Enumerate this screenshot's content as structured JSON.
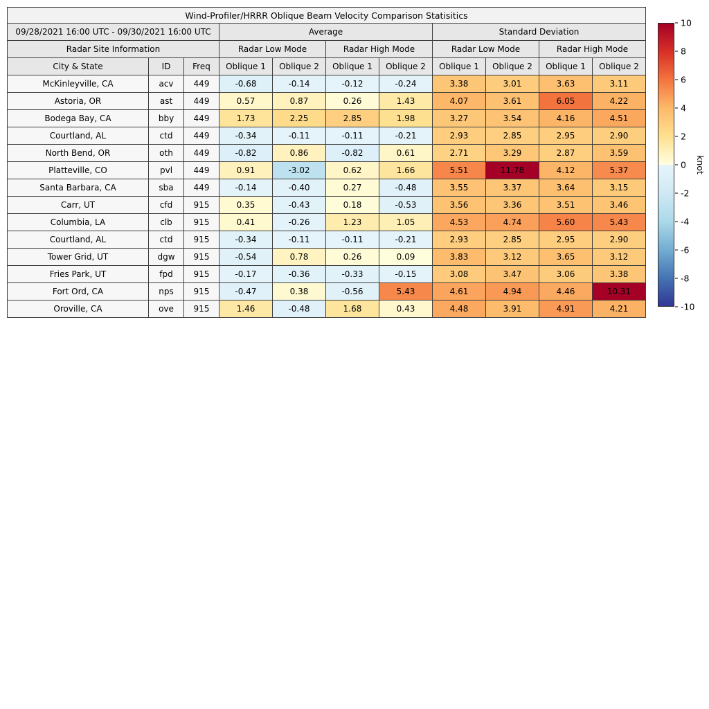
{
  "chart_data": {
    "type": "heatmap",
    "title": "Wind-Profiler/HRRR Oblique Beam Velocity Comparison Statisitics",
    "period_label": "09/28/2021 16:00 UTC - 09/30/2021 16:00 UTC",
    "site_info_label": "Radar Site Information",
    "site_columns": [
      "City & State",
      "ID",
      "Freq"
    ],
    "header_groups": [
      {
        "label": "Average",
        "modes": [
          "Radar Low Mode",
          "Radar High Mode"
        ]
      },
      {
        "label": "Standard Deviation",
        "modes": [
          "Radar Low Mode",
          "Radar High Mode"
        ]
      }
    ],
    "oblique_labels": [
      "Oblique 1",
      "Oblique 2"
    ],
    "colorbar": {
      "label": "knot",
      "min": -10,
      "max": 10,
      "ticks": [
        10,
        8,
        6,
        4,
        2,
        0,
        -2,
        -4,
        -6,
        -8,
        -10
      ]
    },
    "colormap": {
      "negative": [
        [
          -10,
          "#313695"
        ],
        [
          -8,
          "#4575b4"
        ],
        [
          -6,
          "#74add1"
        ],
        [
          -4,
          "#abd9e9"
        ],
        [
          -2,
          "#cfe9f4"
        ],
        [
          0,
          "#e6f4fa"
        ]
      ],
      "positive": [
        [
          0,
          "#ffffe0"
        ],
        [
          2,
          "#fee090"
        ],
        [
          4,
          "#fdb96a"
        ],
        [
          6,
          "#f4753f"
        ],
        [
          8,
          "#d73027"
        ],
        [
          10,
          "#a50026"
        ]
      ]
    },
    "rows": [
      {
        "city": "McKinleyville, CA",
        "id": "acv",
        "freq": "449",
        "values": [
          -0.68,
          -0.14,
          -0.12,
          -0.24,
          3.38,
          3.01,
          3.63,
          3.11
        ]
      },
      {
        "city": "Astoria, OR",
        "id": "ast",
        "freq": "449",
        "values": [
          0.57,
          0.87,
          0.26,
          1.43,
          4.07,
          3.61,
          6.05,
          4.22
        ]
      },
      {
        "city": "Bodega Bay, CA",
        "id": "bby",
        "freq": "449",
        "values": [
          1.73,
          2.25,
          2.85,
          1.98,
          3.27,
          3.54,
          4.16,
          4.51
        ]
      },
      {
        "city": "Courtland, AL",
        "id": "ctd",
        "freq": "449",
        "values": [
          -0.34,
          -0.11,
          -0.11,
          -0.21,
          2.93,
          2.85,
          2.95,
          2.9
        ]
      },
      {
        "city": "North Bend, OR",
        "id": "oth",
        "freq": "449",
        "values": [
          -0.82,
          0.86,
          -0.82,
          0.61,
          2.71,
          3.29,
          2.87,
          3.59
        ]
      },
      {
        "city": "Platteville, CO",
        "id": "pvl",
        "freq": "449",
        "values": [
          0.91,
          -3.02,
          0.62,
          1.66,
          5.51,
          11.78,
          4.12,
          5.37
        ]
      },
      {
        "city": "Santa Barbara, CA",
        "id": "sba",
        "freq": "449",
        "values": [
          -0.14,
          -0.4,
          0.27,
          -0.48,
          3.55,
          3.37,
          3.64,
          3.15
        ]
      },
      {
        "city": "Carr, UT",
        "id": "cfd",
        "freq": "915",
        "values": [
          0.35,
          -0.43,
          0.18,
          -0.53,
          3.56,
          3.36,
          3.51,
          3.46
        ]
      },
      {
        "city": "Columbia, LA",
        "id": "clb",
        "freq": "915",
        "values": [
          0.41,
          -0.26,
          1.23,
          1.05,
          4.53,
          4.74,
          5.6,
          5.43
        ]
      },
      {
        "city": "Courtland, AL",
        "id": "ctd",
        "freq": "915",
        "values": [
          -0.34,
          -0.11,
          -0.11,
          -0.21,
          2.93,
          2.85,
          2.95,
          2.9
        ]
      },
      {
        "city": "Tower Grid, UT",
        "id": "dgw",
        "freq": "915",
        "values": [
          -0.54,
          0.78,
          0.26,
          0.09,
          3.83,
          3.12,
          3.65,
          3.12
        ]
      },
      {
        "city": "Fries Park, UT",
        "id": "fpd",
        "freq": "915",
        "values": [
          -0.17,
          -0.36,
          -0.33,
          -0.15,
          3.08,
          3.47,
          3.06,
          3.38
        ]
      },
      {
        "city": "Fort Ord, CA",
        "id": "nps",
        "freq": "915",
        "values": [
          -0.47,
          0.38,
          -0.56,
          5.43,
          4.61,
          4.94,
          4.46,
          10.31
        ]
      },
      {
        "city": "Oroville, CA",
        "id": "ove",
        "freq": "915",
        "values": [
          1.46,
          -0.48,
          1.68,
          0.43,
          4.48,
          3.91,
          4.91,
          4.21
        ]
      }
    ]
  }
}
